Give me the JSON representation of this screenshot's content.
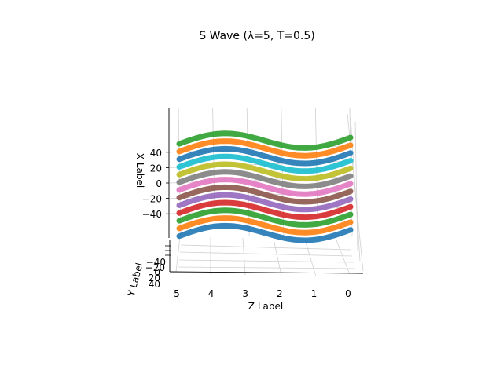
{
  "chart_data": {
    "type": "scatter",
    "projection": "3d",
    "title": "S Wave (λ=5, T=0.5)",
    "xlabel": "X Label",
    "ylabel": "Y Label",
    "zlabel": "Z Label",
    "x_ticks": [
      "40",
      "20",
      "0",
      "−20",
      "−40"
    ],
    "y_ticks": [
      "−40",
      "−20",
      "0",
      "20",
      "40"
    ],
    "z_ticks": [
      "5",
      "4",
      "3",
      "2",
      "1",
      "0"
    ],
    "wave": {
      "wavelength": 5,
      "period": 0.5,
      "amplitude": 4
    },
    "z_range": [
      0,
      5
    ],
    "grid": true,
    "series": [
      {
        "x": 55,
        "color": "#2ca02c"
      },
      {
        "x": 45,
        "color": "#ff7f0e"
      },
      {
        "x": 35,
        "color": "#1f77b4"
      },
      {
        "x": 25,
        "color": "#17becf"
      },
      {
        "x": 15,
        "color": "#bcbd22"
      },
      {
        "x": 5,
        "color": "#7f7f7f"
      },
      {
        "x": -5,
        "color": "#e377c2"
      },
      {
        "x": -15,
        "color": "#8c564b"
      },
      {
        "x": -25,
        "color": "#9467bd"
      },
      {
        "x": -35,
        "color": "#d62728"
      },
      {
        "x": -45,
        "color": "#2ca02c"
      },
      {
        "x": -55,
        "color": "#ff7f0e"
      },
      {
        "x": -65,
        "color": "#1f77b4"
      }
    ]
  }
}
